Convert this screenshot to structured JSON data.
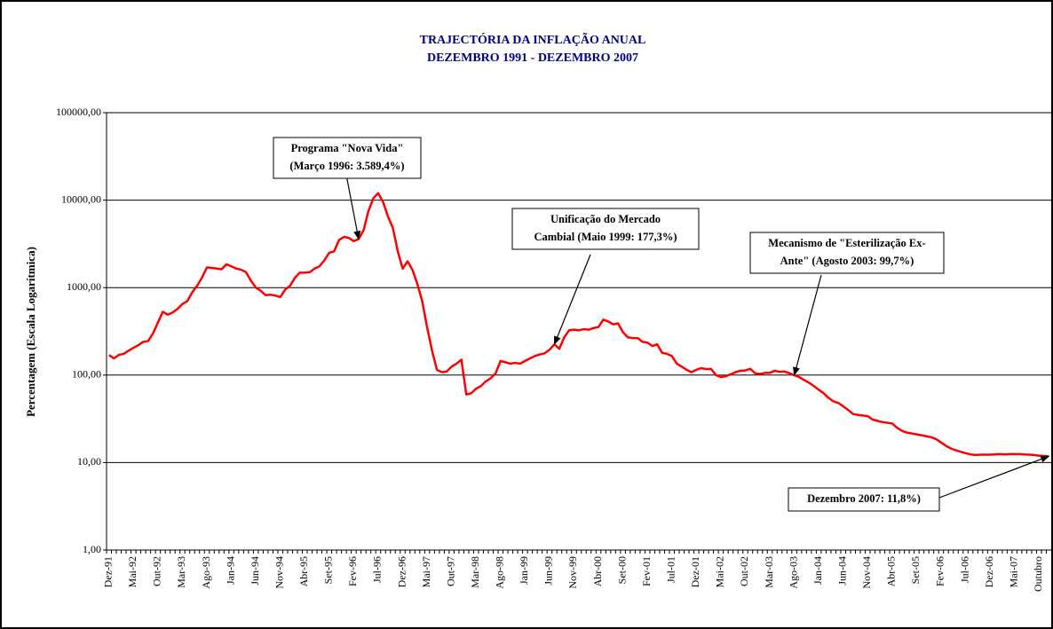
{
  "chart_data": {
    "type": "line",
    "title": [
      "TRAJECTÓRIA DA INFLAÇÃO ANUAL",
      "DEZEMBRO 1991 - DEZEMBRO 2007"
    ],
    "ylabel": "Percentagem (Escala Logarítmica)",
    "log_scale": true,
    "grid": true,
    "color": "#ff0000",
    "ylim": [
      1,
      100000
    ],
    "yticks": [
      {
        "value": 1,
        "label": "1,00"
      },
      {
        "value": 10,
        "label": "10,00"
      },
      {
        "value": 100,
        "label": "100,00"
      },
      {
        "value": 1000,
        "label": "1000,00"
      },
      {
        "value": 10000,
        "label": "10000,00"
      },
      {
        "value": 100000,
        "label": "100000,00"
      }
    ],
    "categories": [
      "Dez-91",
      null,
      null,
      null,
      null,
      "Mai-92",
      null,
      null,
      null,
      null,
      "Out-92",
      null,
      null,
      null,
      null,
      "Mar-93",
      null,
      null,
      null,
      null,
      "Ago-93",
      null,
      null,
      null,
      null,
      "Jan-94",
      null,
      null,
      null,
      null,
      "Jun-94",
      null,
      null,
      null,
      null,
      "Nov-94",
      null,
      null,
      null,
      null,
      "Abr-95",
      null,
      null,
      null,
      null,
      "Set-95",
      null,
      null,
      null,
      null,
      "Fev-96",
      null,
      null,
      null,
      null,
      "Jul-96",
      null,
      null,
      null,
      null,
      "Dez-96",
      null,
      null,
      null,
      null,
      "Mai-97",
      null,
      null,
      null,
      null,
      "Out-97",
      null,
      null,
      null,
      null,
      "Mar-98",
      null,
      null,
      null,
      null,
      "Ago-98",
      null,
      null,
      null,
      null,
      "Jan-99",
      null,
      null,
      null,
      null,
      "Jun-99",
      null,
      null,
      null,
      null,
      "Nov-99",
      null,
      null,
      null,
      null,
      "Abr-00",
      null,
      null,
      null,
      null,
      "Set-00",
      null,
      null,
      null,
      null,
      "Fev-01",
      null,
      null,
      null,
      null,
      "Jul-01",
      null,
      null,
      null,
      null,
      "Dez-01",
      null,
      null,
      null,
      null,
      "Mai-02",
      null,
      null,
      null,
      null,
      "Out-02",
      null,
      null,
      null,
      null,
      "Mar-03",
      null,
      null,
      null,
      null,
      "Ago-03",
      null,
      null,
      null,
      null,
      "Jan-04",
      null,
      null,
      null,
      null,
      "Jun-04",
      null,
      null,
      null,
      null,
      "Nov-04",
      null,
      null,
      null,
      null,
      "Abr-05",
      null,
      null,
      null,
      null,
      "Set-05",
      null,
      null,
      null,
      null,
      "Fev-06",
      null,
      null,
      null,
      null,
      "Jul-06",
      null,
      null,
      null,
      null,
      "Dez-06",
      null,
      null,
      null,
      null,
      "Mai-07",
      null,
      null,
      null,
      null,
      "Outubro",
      null,
      null
    ],
    "values": [
      170,
      155,
      170,
      175,
      190,
      205,
      220,
      240,
      245,
      300,
      400,
      530,
      490,
      520,
      570,
      650,
      700,
      880,
      1050,
      1300,
      1700,
      1680,
      1650,
      1620,
      1850,
      1750,
      1650,
      1600,
      1500,
      1200,
      1000,
      920,
      820,
      830,
      810,
      780,
      950,
      1050,
      1300,
      1480,
      1480,
      1500,
      1650,
      1750,
      2050,
      2500,
      2600,
      3500,
      3800,
      3700,
      3400,
      3589.4,
      4500,
      7500,
      10500,
      12000,
      9500,
      6500,
      4800,
      2600,
      1650,
      2000,
      1600,
      1100,
      700,
      350,
      190,
      115,
      108,
      110,
      125,
      135,
      150,
      60,
      62,
      70,
      75,
      85,
      92,
      105,
      145,
      140,
      135,
      138,
      135,
      145,
      155,
      165,
      172,
      177.3,
      195,
      225,
      200,
      270,
      325,
      330,
      325,
      335,
      330,
      345,
      355,
      430,
      410,
      380,
      390,
      310,
      270,
      265,
      265,
      240,
      235,
      215,
      225,
      180,
      175,
      165,
      135,
      125,
      115,
      108,
      115,
      120,
      117,
      118,
      100,
      95,
      97,
      102,
      108,
      112,
      113,
      118,
      105,
      103,
      106,
      106,
      112,
      109,
      110,
      105,
      99.7,
      95,
      88,
      82,
      75,
      68,
      62,
      55,
      50,
      48,
      44,
      40,
      36,
      35,
      34.5,
      34,
      31,
      30,
      29,
      28.5,
      28,
      25,
      23,
      22,
      21.5,
      21,
      20.5,
      20,
      19.5,
      18.5,
      17,
      15.5,
      14.5,
      13.8,
      13.3,
      12.8,
      12.4,
      12.2,
      12.3,
      12.3,
      12.3,
      12.4,
      12.5,
      12.4,
      12.5,
      12.5,
      12.5,
      12.4,
      12.3,
      12.2,
      12.0,
      11.9,
      11.8
    ],
    "annotations": [
      {
        "lines": [
          "Programa \"Nova Vida\"",
          "(Março 1996: 3.589,4%)"
        ]
      },
      {
        "lines": [
          "Unificação do Mercado",
          "Cambial (Maio 1999: 177,3%)"
        ]
      },
      {
        "lines": [
          "Mecanismo de \"Esterilização Ex-",
          "Ante\" (Agosto 2003: 99,7%)"
        ]
      },
      {
        "lines": [
          "Dezembro 2007: 11,8%)"
        ]
      }
    ]
  }
}
